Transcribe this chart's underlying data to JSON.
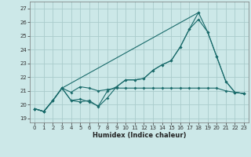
{
  "xlabel": "Humidex (Indice chaleur)",
  "bg_color": "#cce8e8",
  "grid_color": "#aacccc",
  "line_color": "#1a6b6b",
  "xlim": [
    -0.5,
    23.5
  ],
  "ylim": [
    18.7,
    27.5
  ],
  "xticks": [
    0,
    1,
    2,
    3,
    4,
    5,
    6,
    7,
    8,
    9,
    10,
    11,
    12,
    13,
    14,
    15,
    16,
    17,
    18,
    19,
    20,
    21,
    22,
    23
  ],
  "yticks": [
    19,
    20,
    21,
    22,
    23,
    24,
    25,
    26,
    27
  ],
  "series1_x": [
    0,
    1,
    2,
    3,
    4,
    5,
    6,
    7,
    8,
    9,
    10,
    11,
    12,
    13,
    14,
    15,
    16,
    17,
    18,
    19,
    20,
    21,
    22,
    23
  ],
  "series1_y": [
    19.7,
    19.5,
    20.3,
    21.2,
    20.3,
    20.4,
    20.2,
    19.9,
    21.0,
    21.3,
    21.8,
    21.8,
    21.9,
    22.5,
    22.9,
    23.2,
    24.2,
    25.5,
    26.2,
    25.3,
    23.5,
    21.7,
    20.9,
    20.8
  ],
  "series2_x": [
    0,
    1,
    2,
    3,
    4,
    5,
    6,
    7,
    8,
    9,
    10,
    11,
    12,
    13,
    14,
    15,
    16,
    17,
    18,
    19,
    20,
    21,
    22,
    23
  ],
  "series2_y": [
    19.7,
    19.5,
    20.3,
    21.2,
    20.9,
    21.3,
    21.2,
    21.0,
    21.1,
    21.2,
    21.2,
    21.2,
    21.2,
    21.2,
    21.2,
    21.2,
    21.2,
    21.2,
    21.2,
    21.2,
    21.2,
    21.0,
    20.9,
    20.8
  ],
  "series3_x": [
    0,
    1,
    2,
    3,
    4,
    5,
    6,
    7,
    8,
    9,
    10,
    11,
    12,
    13,
    14,
    15,
    16,
    17,
    18
  ],
  "series3_y": [
    19.7,
    19.5,
    20.3,
    21.2,
    20.3,
    20.2,
    20.3,
    19.85,
    20.5,
    21.3,
    21.8,
    21.8,
    21.9,
    22.5,
    22.9,
    23.2,
    24.2,
    25.5,
    26.7
  ],
  "series4_x": [
    0,
    1,
    2,
    3,
    18,
    19,
    20,
    21,
    22,
    23
  ],
  "series4_y": [
    19.7,
    19.5,
    20.3,
    21.2,
    26.7,
    25.3,
    23.5,
    21.7,
    20.9,
    20.8
  ],
  "xlabel_fontsize": 6,
  "tick_fontsize": 5
}
